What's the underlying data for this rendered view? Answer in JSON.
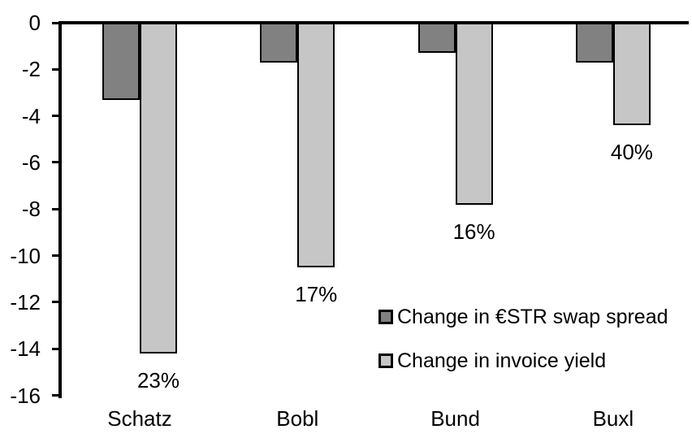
{
  "chart_data": {
    "type": "bar",
    "title": "",
    "xlabel": "",
    "ylabel": "",
    "categories": [
      "Schatz",
      "Bobl",
      "Bund",
      "Buxl"
    ],
    "series": [
      {
        "name": "Change in €STR swap spread",
        "color": "#818181",
        "values": [
          -3.3,
          -1.7,
          -1.3,
          -1.7
        ]
      },
      {
        "name": "Change in invoice yield",
        "color": "#c6c6c6",
        "values": [
          -14.2,
          -10.5,
          -7.8,
          -4.4
        ],
        "point_labels": [
          "23%",
          "17%",
          "16%",
          "40%"
        ]
      }
    ],
    "ylim": [
      -16,
      0
    ],
    "yticks": [
      0,
      -2,
      -4,
      -6,
      -8,
      -10,
      -12,
      -14,
      -16
    ],
    "grid": false,
    "legend_position": "inside-right",
    "bar_outline_color": "#000000",
    "axis_color": "#000000",
    "background_color": "#ffffff"
  }
}
